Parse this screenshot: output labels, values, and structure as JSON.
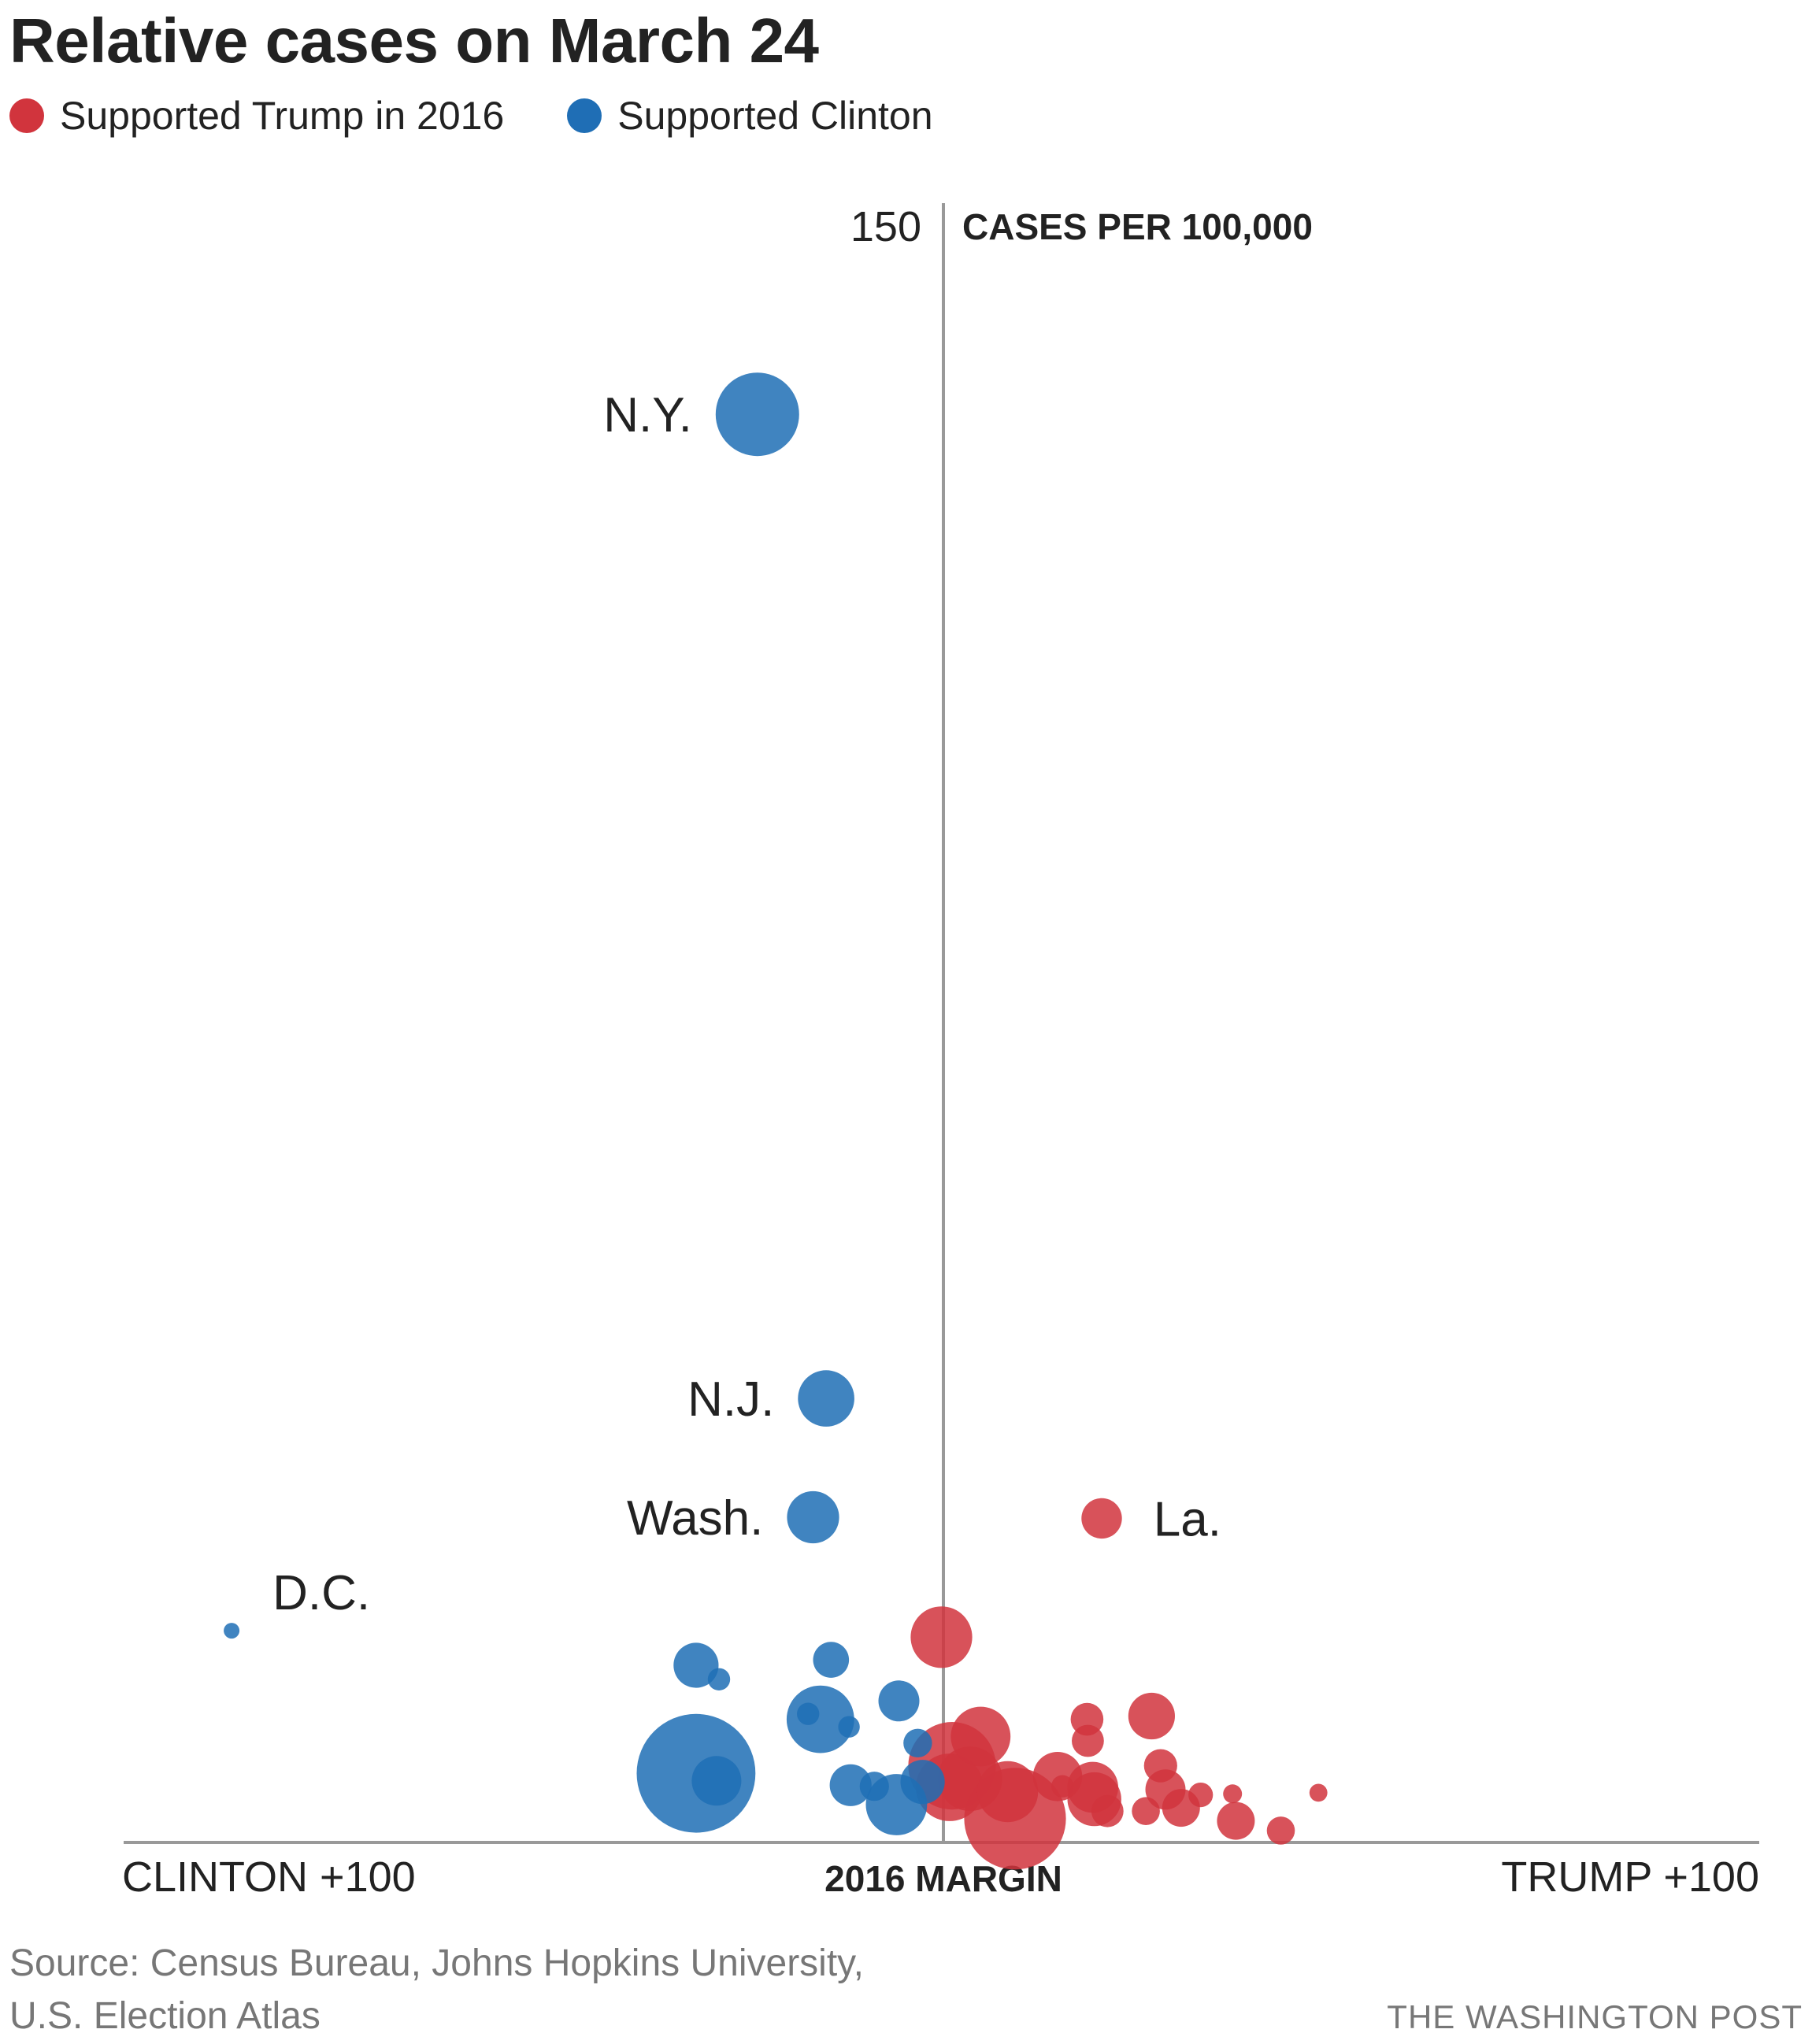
{
  "title": "Relative cases on March 24",
  "legend": {
    "trump": {
      "label": "Supported Trump in 2016",
      "color": "#d1343d"
    },
    "clinton": {
      "label": "Supported Clinton",
      "color": "#1f6eb5"
    }
  },
  "source_line1": "Source: Census Bureau, Johns Hopkins University,",
  "source_line2": "U.S. Election Atlas",
  "credit": "THE WASHINGTON POST",
  "chart_data": {
    "type": "scatter",
    "title": "Relative cases on March 24",
    "xlabel": "2016 MARGIN",
    "ylabel": "CASES PER 100,000",
    "xlim": [
      -100,
      100
    ],
    "ylim": [
      0,
      150
    ],
    "x_left_label": "CLINTON +100",
    "x_right_label": "TRUMP +100",
    "y_top_tick": "150",
    "grid": false,
    "legend": "top-left",
    "size_note": "bubble size ~ state population (millions)",
    "series": [
      {
        "name": "Supported Clinton",
        "color": "#1f6eb5",
        "points": [
          {
            "label": "N.Y.",
            "x": -22.5,
            "y": 132.2,
            "pop": 19.5
          },
          {
            "label": "N.J.",
            "x": -14.1,
            "y": 41.1,
            "pop": 8.9
          },
          {
            "label": "Wash.",
            "x": -15.7,
            "y": 30.1,
            "pop": 7.6
          },
          {
            "label": "D.C.",
            "x": -86.8,
            "y": 19.6,
            "pop": 0.7
          },
          {
            "label": "",
            "x": -30.0,
            "y": 16.4,
            "pop": 5.7
          },
          {
            "label": "",
            "x": -27.2,
            "y": 15.1,
            "pop": 1.4
          },
          {
            "label": "",
            "x": -14.8,
            "y": 11.4,
            "pop": 12.8
          },
          {
            "label": "",
            "x": -13.5,
            "y": 16.9,
            "pop": 3.6
          },
          {
            "label": "",
            "x": -30.0,
            "y": 6.4,
            "pop": 39.5
          },
          {
            "label": "",
            "x": -27.5,
            "y": 5.7,
            "pop": 6.9
          },
          {
            "label": "",
            "x": -16.3,
            "y": 11.9,
            "pop": 1.4
          },
          {
            "label": "",
            "x": -11.3,
            "y": 10.7,
            "pop": 1.3
          },
          {
            "label": "",
            "x": -5.2,
            "y": 13.1,
            "pop": 4.7
          },
          {
            "label": "",
            "x": -2.9,
            "y": 9.2,
            "pop": 2.3
          },
          {
            "label": "",
            "x": -11.1,
            "y": 5.3,
            "pop": 4.9
          },
          {
            "label": "",
            "x": -8.2,
            "y": 5.2,
            "pop": 2.4
          },
          {
            "label": "",
            "x": -5.5,
            "y": 3.5,
            "pop": 10.5
          },
          {
            "label": "",
            "x": -2.3,
            "y": 5.6,
            "pop": 5.5
          }
        ]
      },
      {
        "name": "Supported Trump in 2016",
        "color": "#d1343d",
        "points": [
          {
            "label": "La.",
            "x": 19.6,
            "y": 30.0,
            "pop": 4.6
          },
          {
            "label": "",
            "x": 0.0,
            "y": 19.0,
            "pop": 10.6
          },
          {
            "label": "",
            "x": 4.8,
            "y": 9.8,
            "pop": 10.0
          },
          {
            "label": "",
            "x": 1.3,
            "y": 7.1,
            "pop": 21.5
          },
          {
            "label": "",
            "x": 1.0,
            "y": 5.1,
            "pop": 12.8
          },
          {
            "label": "",
            "x": 3.5,
            "y": 5.9,
            "pop": 11.7
          },
          {
            "label": "",
            "x": 9.0,
            "y": 2.2,
            "pop": 29.0
          },
          {
            "label": "",
            "x": 8.1,
            "y": 4.7,
            "pop": 10.4
          },
          {
            "label": "",
            "x": 14.2,
            "y": 6.1,
            "pop": 6.8
          },
          {
            "label": "",
            "x": 14.8,
            "y": 5.2,
            "pop": 1.4
          },
          {
            "label": "",
            "x": 17.8,
            "y": 11.4,
            "pop": 3.0
          },
          {
            "label": "",
            "x": 17.9,
            "y": 9.4,
            "pop": 2.9
          },
          {
            "label": "",
            "x": 18.5,
            "y": 5.1,
            "pop": 7.3
          },
          {
            "label": "",
            "x": 18.7,
            "y": 4.0,
            "pop": 8.1
          },
          {
            "label": "",
            "x": 20.3,
            "y": 2.9,
            "pop": 2.9
          },
          {
            "label": "",
            "x": 25.7,
            "y": 11.7,
            "pop": 6.1
          },
          {
            "label": "",
            "x": 26.8,
            "y": 7.1,
            "pop": 3.1
          },
          {
            "label": "",
            "x": 27.4,
            "y": 4.9,
            "pop": 4.5
          },
          {
            "label": "",
            "x": 25.0,
            "y": 2.9,
            "pop": 2.2
          },
          {
            "label": "",
            "x": 29.3,
            "y": 3.2,
            "pop": 4.0
          },
          {
            "label": "",
            "x": 31.7,
            "y": 4.4,
            "pop": 1.7
          },
          {
            "label": "",
            "x": 35.6,
            "y": 4.5,
            "pop": 1.0
          },
          {
            "label": "",
            "x": 36.0,
            "y": 2.0,
            "pop": 4.0
          },
          {
            "label": "",
            "x": 41.5,
            "y": 1.1,
            "pop": 2.2
          },
          {
            "label": "",
            "x": 46.1,
            "y": 4.6,
            "pop": 0.9
          }
        ]
      }
    ]
  }
}
